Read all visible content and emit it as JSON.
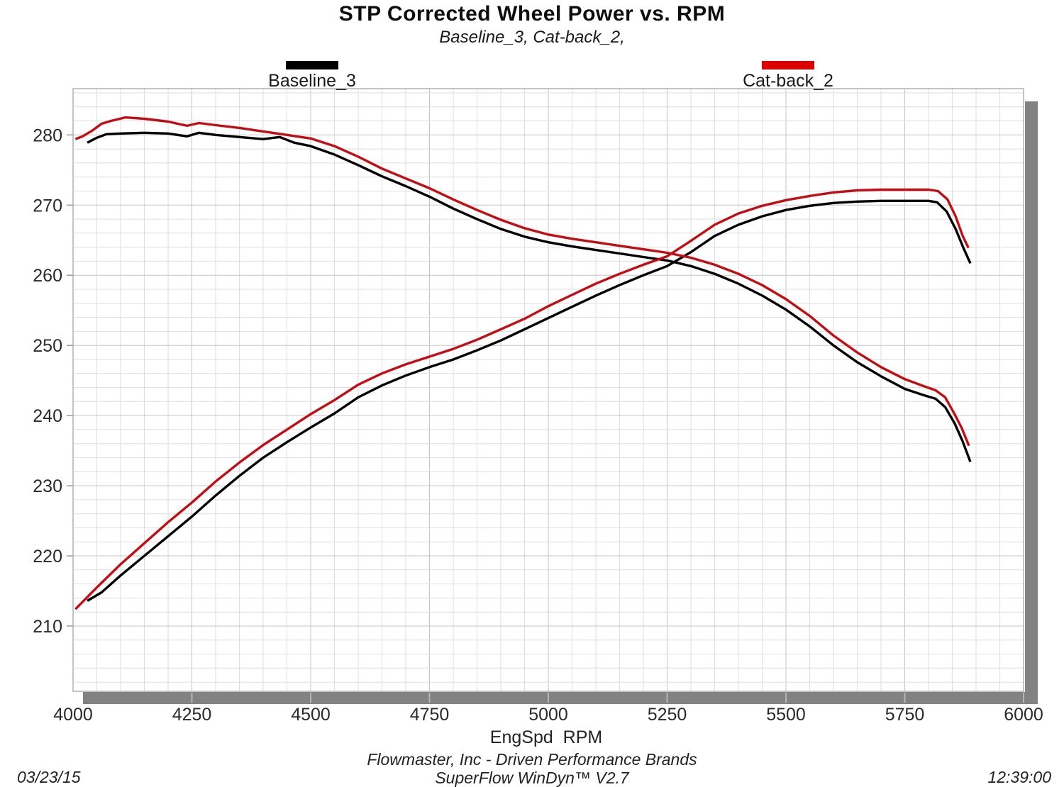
{
  "header": {
    "title": "STP Corrected Wheel Power vs. RPM",
    "subtitle": "Baseline_3, Cat-back_2,"
  },
  "legend": [
    {
      "label": "Baseline_3",
      "color": "#000000"
    },
    {
      "label": "Cat-back_2",
      "color": "#dd0000"
    }
  ],
  "footer": {
    "xlabel": "EngSpd  RPM",
    "org": "Flowmaster, Inc - Driven Performance Brands",
    "software": "SuperFlow WinDyn™ V2.7",
    "date": "03/23/15",
    "time": "12:39:00"
  },
  "chart_data": {
    "type": "line",
    "title": "STP Corrected Wheel Power vs. RPM",
    "subtitle": "Baseline_3, Cat-back_2,",
    "xlabel": "EngSpd RPM",
    "xlim": [
      4000,
      6000
    ],
    "ylim": [
      200.7,
      286.6
    ],
    "x_major_ticks": [
      4000,
      4250,
      4500,
      4750,
      5000,
      5250,
      5500,
      5750,
      6000
    ],
    "y_major_ticks": [
      210,
      220,
      230,
      240,
      250,
      260,
      270,
      280
    ],
    "x_minor_step": 50,
    "y_minor_step": 2,
    "grid": "light gray minor grid on, white background",
    "legend_position": "top, outside plot",
    "series": [
      {
        "run": "Baseline_3",
        "curve": "ascending-power",
        "color": "#000000",
        "x": [
          4030,
          4060,
          4100,
          4150,
          4200,
          4250,
          4300,
          4350,
          4400,
          4450,
          4500,
          4550,
          4600,
          4650,
          4700,
          4750,
          4800,
          4850,
          4900,
          4950,
          5000,
          5050,
          5100,
          5150,
          5200,
          5250,
          5300,
          5350,
          5400,
          5450,
          5500,
          5550,
          5600,
          5650,
          5700,
          5750,
          5800,
          5818,
          5838,
          5857,
          5874,
          5888
        ],
        "y": [
          213.6,
          214.8,
          217.2,
          220.0,
          222.8,
          225.6,
          228.6,
          231.4,
          234.0,
          236.2,
          238.3,
          240.3,
          242.6,
          244.3,
          245.7,
          246.9,
          248.0,
          249.3,
          250.7,
          252.3,
          253.9,
          255.5,
          257.1,
          258.6,
          260.0,
          261.3,
          263.3,
          265.6,
          267.2,
          268.4,
          269.3,
          269.9,
          270.3,
          270.5,
          270.6,
          270.6,
          270.6,
          270.4,
          269.1,
          266.6,
          263.8,
          261.7
        ]
      },
      {
        "run": "Baseline_3",
        "curve": "descending-upper",
        "color": "#000000",
        "x": [
          4030,
          4050,
          4070,
          4100,
          4150,
          4200,
          4240,
          4265,
          4300,
          4350,
          4400,
          4435,
          4465,
          4500,
          4550,
          4600,
          4650,
          4700,
          4750,
          4800,
          4850,
          4900,
          4950,
          5000,
          5050,
          5100,
          5150,
          5200,
          5250,
          5300,
          5350,
          5400,
          5450,
          5500,
          5550,
          5600,
          5650,
          5700,
          5750,
          5790,
          5815,
          5835,
          5855,
          5872,
          5888
        ],
        "y": [
          278.9,
          279.6,
          280.1,
          280.2,
          280.3,
          280.2,
          279.8,
          280.3,
          280.0,
          279.7,
          279.4,
          279.7,
          278.9,
          278.4,
          277.2,
          275.7,
          274.1,
          272.7,
          271.2,
          269.5,
          268.0,
          266.6,
          265.5,
          264.7,
          264.1,
          263.6,
          263.1,
          262.6,
          262.1,
          261.3,
          260.2,
          258.8,
          257.1,
          255.1,
          252.7,
          250.0,
          247.6,
          245.6,
          243.8,
          242.9,
          242.4,
          241.2,
          238.9,
          236.3,
          233.4
        ]
      },
      {
        "run": "Cat-back_2",
        "curve": "ascending-power",
        "color": "#c40d12",
        "x": [
          4005,
          4050,
          4100,
          4150,
          4200,
          4250,
          4300,
          4350,
          4400,
          4450,
          4500,
          4550,
          4600,
          4650,
          4700,
          4750,
          4800,
          4850,
          4900,
          4950,
          5000,
          5050,
          5100,
          5150,
          5200,
          5250,
          5300,
          5350,
          5400,
          5450,
          5500,
          5550,
          5600,
          5650,
          5700,
          5750,
          5800,
          5820,
          5840,
          5857,
          5872,
          5884
        ],
        "y": [
          212.4,
          215.5,
          218.8,
          221.8,
          224.8,
          227.6,
          230.6,
          233.3,
          235.8,
          238.0,
          240.2,
          242.2,
          244.4,
          246.0,
          247.3,
          248.4,
          249.5,
          250.8,
          252.3,
          253.8,
          255.6,
          257.2,
          258.8,
          260.2,
          261.5,
          262.7,
          264.9,
          267.2,
          268.8,
          269.9,
          270.7,
          271.3,
          271.8,
          272.1,
          272.2,
          272.2,
          272.2,
          272.0,
          270.8,
          268.4,
          265.6,
          263.9
        ]
      },
      {
        "run": "Cat-back_2",
        "curve": "descending-upper",
        "color": "#c40d12",
        "x": [
          4005,
          4020,
          4040,
          4060,
          4080,
          4110,
          4150,
          4200,
          4240,
          4265,
          4300,
          4350,
          4400,
          4450,
          4500,
          4550,
          4600,
          4650,
          4700,
          4750,
          4800,
          4850,
          4900,
          4950,
          5000,
          5050,
          5100,
          5150,
          5200,
          5250,
          5300,
          5350,
          5400,
          5450,
          5500,
          5550,
          5600,
          5650,
          5700,
          5750,
          5790,
          5815,
          5835,
          5855,
          5870,
          5885
        ],
        "y": [
          279.4,
          279.8,
          280.6,
          281.6,
          282.0,
          282.5,
          282.3,
          281.9,
          281.3,
          281.7,
          281.4,
          281.0,
          280.5,
          280.0,
          279.5,
          278.4,
          276.9,
          275.2,
          273.8,
          272.4,
          270.8,
          269.3,
          267.9,
          266.7,
          265.8,
          265.2,
          264.7,
          264.2,
          263.7,
          263.2,
          262.5,
          261.5,
          260.2,
          258.6,
          256.6,
          254.2,
          251.4,
          249.0,
          246.9,
          245.2,
          244.2,
          243.6,
          242.6,
          240.2,
          238.2,
          235.7
        ]
      }
    ]
  }
}
